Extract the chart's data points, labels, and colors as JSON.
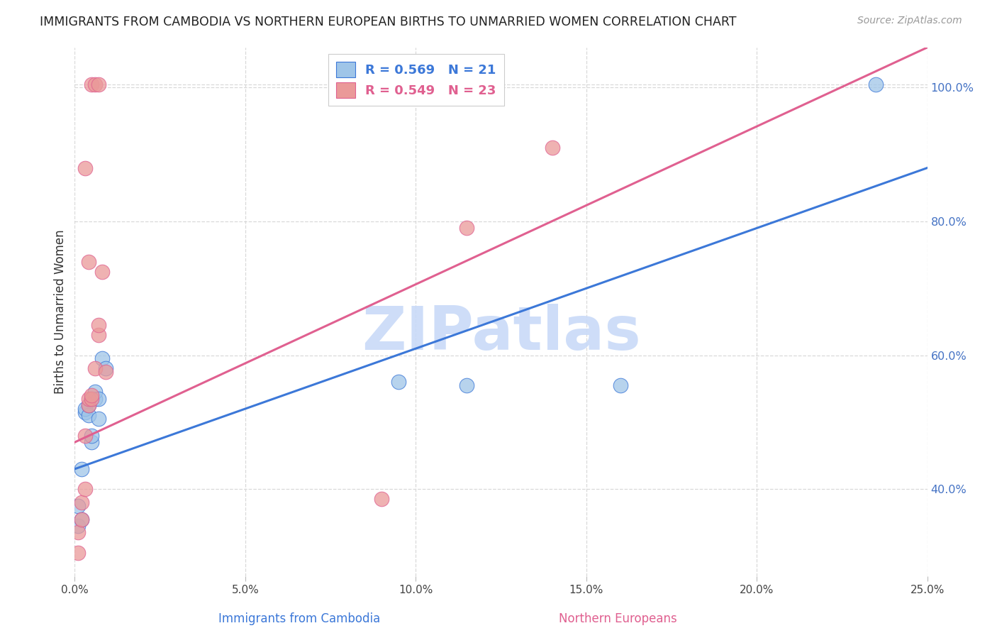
{
  "title": "IMMIGRANTS FROM CAMBODIA VS NORTHERN EUROPEAN BIRTHS TO UNMARRIED WOMEN CORRELATION CHART",
  "source": "Source: ZipAtlas.com",
  "ylabel": "Births to Unmarried Women",
  "R1": 0.569,
  "N1": 21,
  "R2": 0.549,
  "N2": 23,
  "color1": "#9fc5e8",
  "color2": "#ea9999",
  "line_color1": "#3c78d8",
  "line_color2": "#e06090",
  "watermark": "ZIPatlas",
  "watermark_color": "#c9daf8",
  "x_min": 0.0,
  "x_max": 0.25,
  "y_min": 0.27,
  "y_max": 1.06,
  "xtick_vals": [
    0.0,
    0.05,
    0.1,
    0.15,
    0.2,
    0.25
  ],
  "xtick_labels": [
    "0.0%",
    "5.0%",
    "10.0%",
    "15.0%",
    "20.0%",
    "25.0%"
  ],
  "ytick_vals": [
    0.4,
    0.6,
    0.8,
    1.0
  ],
  "ytick_labels": [
    "40.0%",
    "60.0%",
    "80.0%",
    "100.0%"
  ],
  "blue_x": [
    0.001,
    0.001,
    0.002,
    0.002,
    0.003,
    0.003,
    0.004,
    0.004,
    0.005,
    0.005,
    0.005,
    0.006,
    0.006,
    0.007,
    0.007,
    0.008,
    0.009,
    0.095,
    0.115,
    0.16,
    0.235
  ],
  "blue_y": [
    0.345,
    0.375,
    0.355,
    0.43,
    0.515,
    0.52,
    0.51,
    0.525,
    0.47,
    0.48,
    0.535,
    0.535,
    0.545,
    0.505,
    0.535,
    0.595,
    0.58,
    0.56,
    0.555,
    0.555,
    1.005
  ],
  "pink_x": [
    0.001,
    0.001,
    0.002,
    0.002,
    0.003,
    0.003,
    0.004,
    0.004,
    0.005,
    0.005,
    0.006,
    0.007,
    0.007,
    0.008,
    0.009,
    0.09,
    0.115,
    0.14,
    0.005,
    0.006,
    0.007,
    0.003,
    0.004
  ],
  "pink_y": [
    0.305,
    0.335,
    0.355,
    0.38,
    0.4,
    0.48,
    0.525,
    0.535,
    0.535,
    0.54,
    0.58,
    0.63,
    0.645,
    0.725,
    0.575,
    0.385,
    0.79,
    0.91,
    1.005,
    1.005,
    1.005,
    0.88,
    0.74
  ],
  "blue_line_x0": 0.0,
  "blue_line_y0": 0.43,
  "blue_line_x1": 0.25,
  "blue_line_y1": 0.88,
  "pink_line_x0": 0.0,
  "pink_line_y0": 0.47,
  "pink_line_x1": 0.25,
  "pink_line_y1": 1.06,
  "grid_color": "#d9d9d9",
  "bg_color": "#ffffff",
  "right_axis_color": "#4472c4",
  "bottom_label1": "Immigrants from Cambodia",
  "bottom_label2": "Northern Europeans"
}
